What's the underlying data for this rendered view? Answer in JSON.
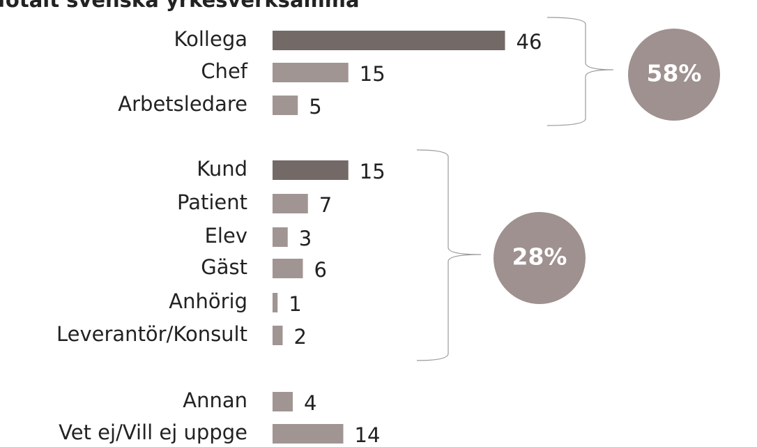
{
  "chart_data": {
    "type": "bar",
    "orientation": "horizontal",
    "title": "Totalt svenska yrkesverksamma",
    "categories": [
      "Kollega",
      "Chef",
      "Arbetsledare",
      "Kund",
      "Patient",
      "Elev",
      "Gäst",
      "Anhörig",
      "Leverantör/Konsult",
      "Annan",
      "Vet ej/Vill ej uppge"
    ],
    "values": [
      46,
      15,
      5,
      15,
      7,
      3,
      6,
      1,
      2,
      4,
      14
    ],
    "colors": [
      "#736a68",
      "#a09593",
      "#a09593",
      "#736a68",
      "#a09593",
      "#a09593",
      "#a09593",
      "#a09593",
      "#a09593",
      "#a09593",
      "#a09593"
    ],
    "annotations": [
      {
        "text": "58%",
        "color": "#9e918f"
      },
      {
        "text": "28%",
        "color": "#9e918f"
      }
    ]
  }
}
